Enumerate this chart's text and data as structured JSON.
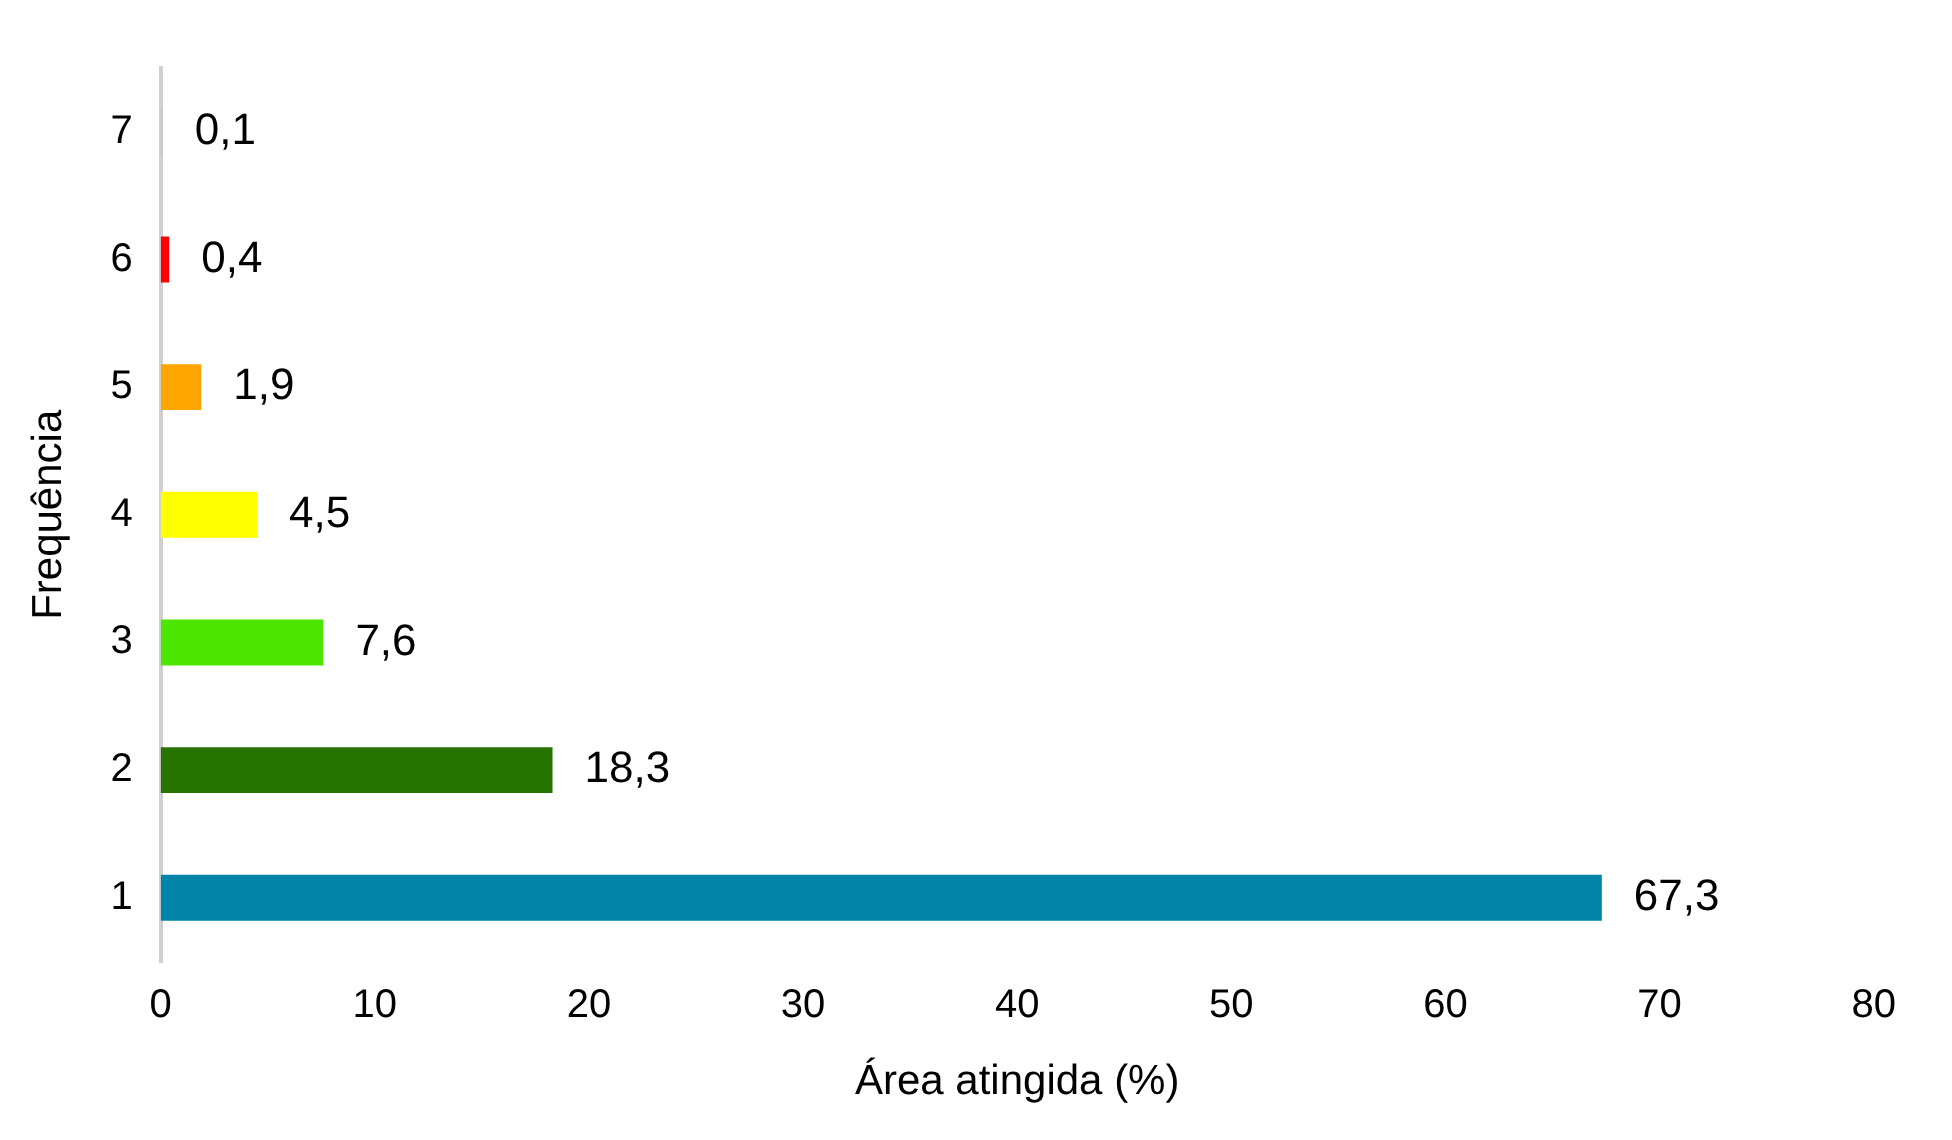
{
  "chart_data": {
    "type": "bar",
    "orientation": "horizontal",
    "xlabel": "Área atingida (%)",
    "ylabel": "Frequência",
    "categories": [
      "7",
      "6",
      "5",
      "4",
      "3",
      "2",
      "1"
    ],
    "values": [
      0.1,
      0.4,
      1.9,
      4.5,
      7.6,
      18.3,
      67.3
    ],
    "value_labels": [
      "0,1",
      "0,4",
      "1,9",
      "4,5",
      "7,6",
      "18,3",
      "67,3"
    ],
    "colors": [
      "#c8c8c8",
      "#ff0000",
      "#ffa500",
      "#ffff00",
      "#4ce600",
      "#267300",
      "#0084a8"
    ],
    "xlim": [
      0,
      80
    ],
    "xticks": [
      0,
      10,
      20,
      30,
      40,
      50,
      60,
      70,
      80
    ],
    "grid": false,
    "legend": false
  }
}
